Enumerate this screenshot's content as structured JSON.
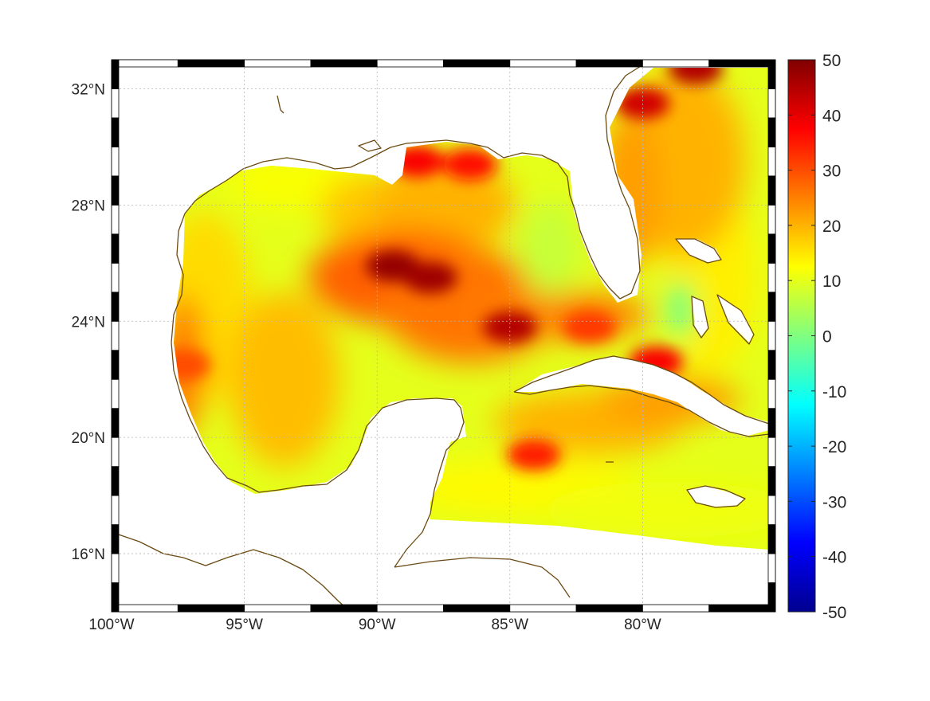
{
  "chart_data": {
    "type": "heatmap",
    "title": "",
    "projection": "map, lon/lat graticule",
    "lon_range": [
      -100,
      -75
    ],
    "lat_range": [
      14,
      33
    ],
    "grid": true,
    "lon_ticks": [
      {
        "value": -100,
        "label": "100°W"
      },
      {
        "value": -95,
        "label": "95°W"
      },
      {
        "value": -90,
        "label": "90°W"
      },
      {
        "value": -85,
        "label": "85°W"
      },
      {
        "value": -80,
        "label": "80°W"
      }
    ],
    "lat_ticks": [
      {
        "value": 16,
        "label": "16°N"
      },
      {
        "value": 20,
        "label": "20°N"
      },
      {
        "value": 24,
        "label": "24°N"
      },
      {
        "value": 28,
        "label": "28°N"
      },
      {
        "value": 32,
        "label": "32°N"
      }
    ],
    "colorbar": {
      "colormap": "jet",
      "range": [
        -50,
        50
      ],
      "ticks": [
        {
          "value": 50,
          "label": "50"
        },
        {
          "value": 40,
          "label": "40"
        },
        {
          "value": 30,
          "label": "30"
        },
        {
          "value": 20,
          "label": "20"
        },
        {
          "value": 10,
          "label": "10"
        },
        {
          "value": 0,
          "label": "0"
        },
        {
          "value": -10,
          "label": "-10"
        },
        {
          "value": -20,
          "label": "-20"
        },
        {
          "value": -30,
          "label": "-30"
        },
        {
          "value": -40,
          "label": "-40"
        },
        {
          "value": -50,
          "label": "-50"
        }
      ]
    },
    "field_summary": {
      "background_value": 10,
      "hotspots": [
        {
          "name": "central-gulf-max",
          "lon": -89.4,
          "lat": 25.9,
          "value": 48
        },
        {
          "name": "central-gulf-max-2",
          "lon": -88.0,
          "lat": 25.5,
          "value": 47
        },
        {
          "name": "loop-current-eddy",
          "lon": -85.0,
          "lat": 23.8,
          "value": 45
        },
        {
          "name": "north-gulf-shelf",
          "lon": -88.5,
          "lat": 29.5,
          "value": 38
        },
        {
          "name": "north-gulf-shelf-2",
          "lon": -86.5,
          "lat": 29.4,
          "value": 36
        },
        {
          "name": "gulf-stream-north",
          "lon": -80.0,
          "lat": 31.5,
          "value": 42
        },
        {
          "name": "gulf-stream-ne",
          "lon": -78.0,
          "lat": 32.7,
          "value": 45
        },
        {
          "name": "florida-straits",
          "lon": -82.0,
          "lat": 23.8,
          "value": 32
        },
        {
          "name": "north-cuba-coast",
          "lon": -79.5,
          "lat": 22.6,
          "value": 38
        },
        {
          "name": "cayman",
          "lon": -84.1,
          "lat": 19.4,
          "value": 35
        },
        {
          "name": "western-gulf-coast",
          "lon": -97.3,
          "lat": 22.5,
          "value": 30
        }
      ],
      "cold_spots": [
        {
          "name": "great-bahama-bank",
          "lon": -78.6,
          "lat": 24.4,
          "value": 2
        },
        {
          "name": "west-florida-shelf",
          "lon": -83.5,
          "lat": 26.5,
          "value": 7
        }
      ]
    }
  }
}
